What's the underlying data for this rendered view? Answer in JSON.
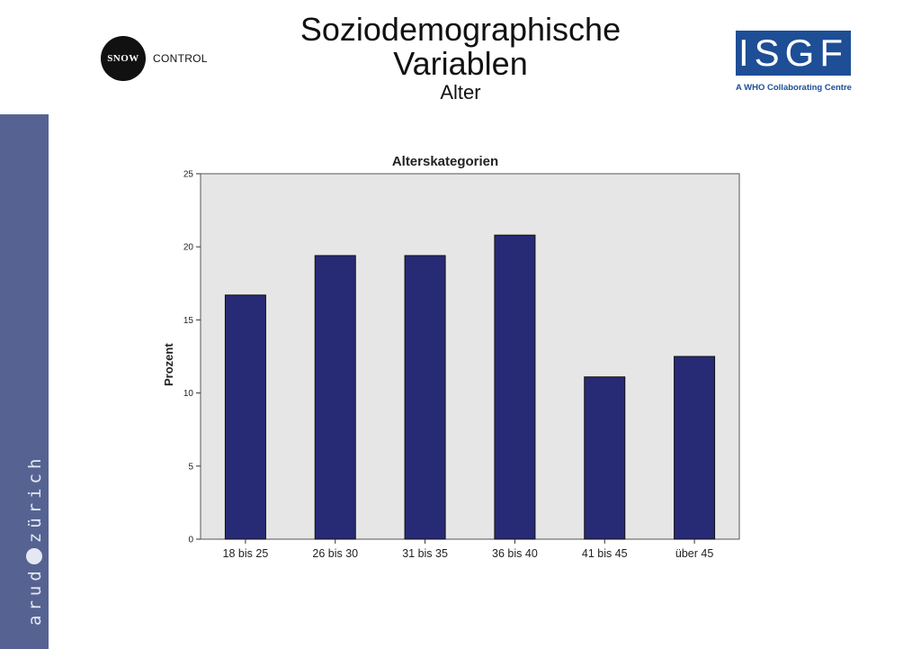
{
  "header": {
    "title_line1": "Soziodemographische",
    "title_line2": "Variablen",
    "subtitle": "Alter"
  },
  "logos": {
    "snow": {
      "circle_text": "SNOW",
      "text": "CONTROL"
    },
    "isgf": {
      "text": "ISGF",
      "tagline": "A WHO Collaborating Centre",
      "color": "#1d4e96"
    }
  },
  "sidebar": {
    "text_left": "arud",
    "text_right": "zürich",
    "color": "#566392"
  },
  "chart_data": {
    "type": "bar",
    "title": "Alterskategorien",
    "xlabel": "",
    "ylabel": "Prozent",
    "categories": [
      "18 bis 25",
      "26 bis 30",
      "31 bis 35",
      "36 bis 40",
      "41 bis 45",
      "über 45"
    ],
    "values": [
      16.7,
      19.4,
      19.4,
      20.8,
      11.1,
      12.5
    ],
    "ylim": [
      0,
      25
    ],
    "yticks": [
      0,
      5,
      10,
      15,
      20,
      25
    ],
    "bar_color": "#272a75",
    "plot_background": "#e6e6e6",
    "grid": false,
    "legend": false
  }
}
